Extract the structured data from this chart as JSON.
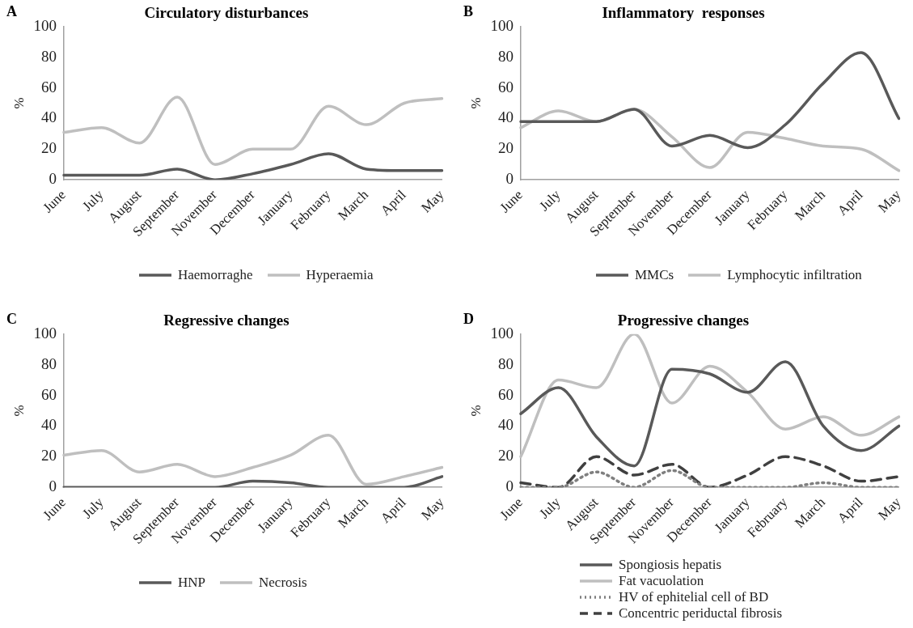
{
  "chart_data": [
    {
      "type": "line",
      "title": "Circulatory disturbances",
      "ylabel": "%",
      "annotations": [
        "A"
      ],
      "categories": [
        "June",
        "July",
        "August",
        "September",
        "November",
        "December",
        "January",
        "February",
        "March",
        "April",
        "May"
      ],
      "ylim": [
        0,
        100
      ],
      "yticks": [
        0,
        20,
        40,
        60,
        80,
        100
      ],
      "grid": false,
      "legend": "bottom",
      "marker": "none",
      "series": [
        {
          "name": "Haemorraghe",
          "color": "#595959",
          "values": [
            3,
            3,
            3,
            7,
            0,
            4,
            10,
            17,
            7,
            6,
            6
          ]
        },
        {
          "name": "Hyperaemia",
          "color": "#bfbfbf",
          "values": [
            31,
            34,
            24,
            54,
            10,
            20,
            20,
            48,
            36,
            50,
            53
          ]
        }
      ]
    },
    {
      "type": "line",
      "title": "Inflammatory  responses",
      "ylabel": "%",
      "annotations": [
        "B"
      ],
      "categories": [
        "June",
        "July",
        "August",
        "September",
        "November",
        "December",
        "January",
        "February",
        "March",
        "April",
        "May"
      ],
      "ylim": [
        0,
        100
      ],
      "yticks": [
        0,
        20,
        40,
        60,
        80,
        100
      ],
      "grid": false,
      "legend": "bottom",
      "marker": "none",
      "series": [
        {
          "name": "MMCs",
          "color": "#595959",
          "values": [
            38,
            38,
            38,
            46,
            22,
            29,
            21,
            36,
            63,
            83,
            40
          ]
        },
        {
          "name": "Lymphocytic infiltration",
          "color": "#bfbfbf",
          "values": [
            34,
            45,
            38,
            46,
            28,
            8,
            31,
            27,
            22,
            20,
            6
          ]
        }
      ]
    },
    {
      "type": "line",
      "title": "Regressive changes",
      "ylabel": "%",
      "annotations": [
        "C"
      ],
      "categories": [
        "June",
        "July",
        "August",
        "September",
        "November",
        "December",
        "January",
        "February",
        "March",
        "April",
        "May"
      ],
      "ylim": [
        0,
        100
      ],
      "yticks": [
        0,
        20,
        40,
        60,
        80,
        100
      ],
      "grid": false,
      "legend": "bottom",
      "marker": "none",
      "series": [
        {
          "name": "HNP",
          "color": "#595959",
          "values": [
            0,
            0,
            0,
            0,
            0,
            4,
            3,
            0,
            0,
            0,
            7
          ]
        },
        {
          "name": "Necrosis",
          "color": "#bfbfbf",
          "values": [
            21,
            24,
            10,
            15,
            7,
            13,
            21,
            34,
            2,
            7,
            13
          ]
        }
      ]
    },
    {
      "type": "line",
      "title": "Progressive changes",
      "ylabel": "%",
      "annotations": [
        "D"
      ],
      "categories": [
        "June",
        "July",
        "August",
        "September",
        "November",
        "December",
        "January",
        "February",
        "March",
        "April",
        "May"
      ],
      "ylim": [
        0,
        100
      ],
      "yticks": [
        0,
        20,
        40,
        60,
        80,
        100
      ],
      "grid": false,
      "legend": "bottom",
      "marker": "none",
      "series": [
        {
          "name": "Spongiosis hepatis",
          "color": "#595959",
          "values": [
            48,
            65,
            33,
            14,
            77,
            74,
            62,
            82,
            40,
            24,
            40
          ]
        },
        {
          "name": "Fat vacuolation",
          "color": "#bfbfbf",
          "values": [
            20,
            70,
            65,
            100,
            55,
            79,
            62,
            38,
            46,
            34,
            46
          ]
        },
        {
          "name": "HV of ephitelial cell of BD",
          "color": "#7f7f7f",
          "line_style": "dotted",
          "values": [
            0,
            0,
            10,
            0,
            11,
            0,
            0,
            0,
            3,
            0,
            0
          ]
        },
        {
          "name": "Concentric periductal fibrosis",
          "color": "#404040",
          "line_style": "dashed",
          "values": [
            3,
            0,
            20,
            8,
            15,
            0,
            8,
            20,
            14,
            4,
            7
          ]
        }
      ]
    }
  ]
}
